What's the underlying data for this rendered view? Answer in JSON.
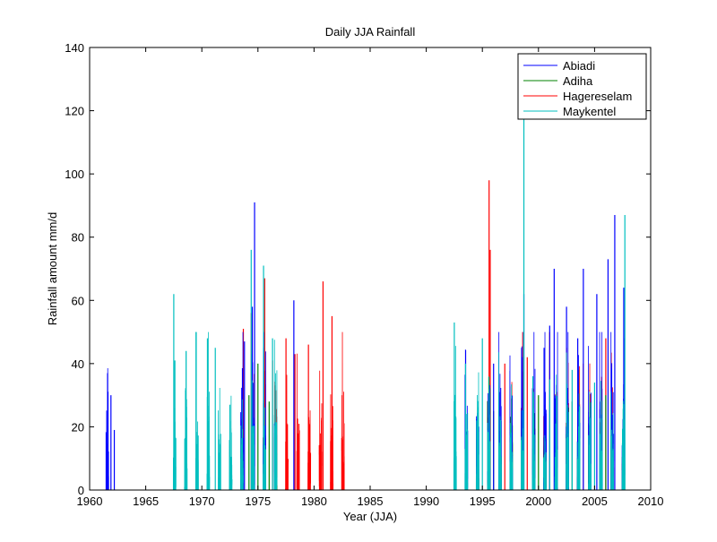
{
  "chart_data": {
    "type": "line",
    "title": "Daily JJA Rainfall",
    "xlabel": "Year (JJA)",
    "ylabel": "Rainfall amount mm/d",
    "xlim": [
      1960,
      2010
    ],
    "ylim": [
      0,
      140
    ],
    "xticks": [
      1960,
      1965,
      1970,
      1975,
      1980,
      1985,
      1990,
      1995,
      2000,
      2005,
      2010
    ],
    "yticks": [
      0,
      20,
      40,
      60,
      80,
      100,
      120,
      140
    ],
    "legend_position": "top-right",
    "grid": false,
    "series": [
      {
        "name": "Abiadi",
        "color": "#0000ff",
        "segments": [
          [
            1961.4,
            1962.3
          ],
          [
            1973.4,
            1976.5
          ],
          [
            1992.8,
            2008.1
          ]
        ],
        "peaks": [
          {
            "x": 1961.6,
            "y": 37
          },
          {
            "x": 1961.9,
            "y": 30
          },
          {
            "x": 1962.2,
            "y": 19
          },
          {
            "x": 1973.8,
            "y": 47
          },
          {
            "x": 1974.5,
            "y": 58
          },
          {
            "x": 1974.7,
            "y": 91
          },
          {
            "x": 1975.5,
            "y": 45
          },
          {
            "x": 1978.2,
            "y": 60
          },
          {
            "x": 1996.0,
            "y": 40
          },
          {
            "x": 1998.5,
            "y": 45
          },
          {
            "x": 1998.7,
            "y": 62
          },
          {
            "x": 2000.5,
            "y": 45
          },
          {
            "x": 2001.0,
            "y": 52
          },
          {
            "x": 2001.4,
            "y": 70
          },
          {
            "x": 2002.5,
            "y": 58
          },
          {
            "x": 2003.5,
            "y": 48
          },
          {
            "x": 2004.0,
            "y": 70
          },
          {
            "x": 2005.2,
            "y": 62
          },
          {
            "x": 2006.2,
            "y": 73
          },
          {
            "x": 2006.8,
            "y": 87
          },
          {
            "x": 2007.6,
            "y": 64
          }
        ]
      },
      {
        "name": "Adiha",
        "color": "#008000",
        "segments": [
          [
            1973.5,
            1977.0
          ],
          [
            1994.0,
            2008.0
          ]
        ],
        "peaks": [
          {
            "x": 1974.2,
            "y": 30
          },
          {
            "x": 1975.0,
            "y": 40
          },
          {
            "x": 1976.0,
            "y": 28
          },
          {
            "x": 1996.0,
            "y": 25
          },
          {
            "x": 2000.0,
            "y": 30
          },
          {
            "x": 2003.0,
            "y": 28
          },
          {
            "x": 2006.0,
            "y": 30
          }
        ]
      },
      {
        "name": "Hagereselam",
        "color": "#ff0000",
        "segments": [
          [
            1973.5,
            1982.8
          ],
          [
            1995.0,
            2007.5
          ]
        ],
        "peaks": [
          {
            "x": 1973.7,
            "y": 51
          },
          {
            "x": 1974.4,
            "y": 56
          },
          {
            "x": 1975.6,
            "y": 67
          },
          {
            "x": 1976.3,
            "y": 41
          },
          {
            "x": 1977.5,
            "y": 48
          },
          {
            "x": 1978.3,
            "y": 43
          },
          {
            "x": 1979.5,
            "y": 46
          },
          {
            "x": 1980.8,
            "y": 66
          },
          {
            "x": 1981.6,
            "y": 55
          },
          {
            "x": 1982.5,
            "y": 30
          },
          {
            "x": 1995.6,
            "y": 98
          },
          {
            "x": 1995.7,
            "y": 76
          },
          {
            "x": 1997.0,
            "y": 40
          },
          {
            "x": 1999.0,
            "y": 42
          },
          {
            "x": 2001.0,
            "y": 50
          },
          {
            "x": 2002.5,
            "y": 45
          },
          {
            "x": 2004.0,
            "y": 40
          },
          {
            "x": 2006.0,
            "y": 48
          }
        ]
      },
      {
        "name": "Maykentel",
        "color": "#00bfbf",
        "segments": [
          [
            1967.2,
            1976.7
          ],
          [
            1992.3,
            2008.0
          ]
        ],
        "peaks": [
          {
            "x": 1967.5,
            "y": 62
          },
          {
            "x": 1967.6,
            "y": 41
          },
          {
            "x": 1968.6,
            "y": 44
          },
          {
            "x": 1969.5,
            "y": 50
          },
          {
            "x": 1970.5,
            "y": 48
          },
          {
            "x": 1971.2,
            "y": 45
          },
          {
            "x": 1972.5,
            "y": 27
          },
          {
            "x": 1974.4,
            "y": 76
          },
          {
            "x": 1975.5,
            "y": 71
          },
          {
            "x": 1976.3,
            "y": 48
          },
          {
            "x": 1992.5,
            "y": 53
          },
          {
            "x": 1993.5,
            "y": 40
          },
          {
            "x": 1995.0,
            "y": 48
          },
          {
            "x": 1998.7,
            "y": 120
          },
          {
            "x": 1999.5,
            "y": 36
          },
          {
            "x": 2001.0,
            "y": 35
          },
          {
            "x": 2003.0,
            "y": 38
          },
          {
            "x": 2005.0,
            "y": 34
          },
          {
            "x": 2007.7,
            "y": 87
          }
        ]
      }
    ]
  }
}
